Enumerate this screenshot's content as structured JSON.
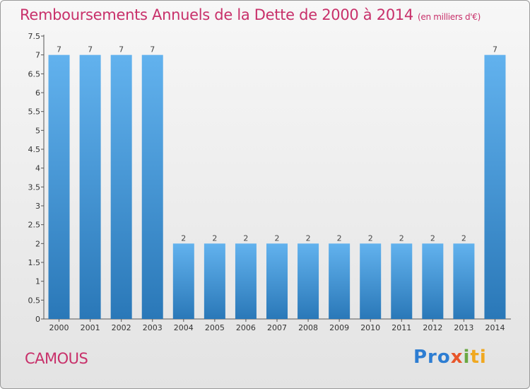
{
  "header": {
    "title": "Remboursements Annuels de la Dette de 2000 à 2014",
    "unit": "(en milliers d'€)"
  },
  "footer": {
    "commune": "CAMOUS",
    "logo": {
      "p1": "Pro",
      "p2": "x",
      "p3": "i",
      "p4": "ti"
    }
  },
  "colors": {
    "title": "#c8306a",
    "bar_light": "#62b2ee",
    "bar_dark": "#2a78b8"
  },
  "chart_data": {
    "type": "bar",
    "title": "Remboursements Annuels de la Dette de 2000 à 2014",
    "categories": [
      "2000",
      "2001",
      "2002",
      "2003",
      "2004",
      "2005",
      "2006",
      "2007",
      "2008",
      "2009",
      "2010",
      "2011",
      "2012",
      "2013",
      "2014"
    ],
    "values": [
      7,
      7,
      7,
      7,
      2,
      2,
      2,
      2,
      2,
      2,
      2,
      2,
      2,
      2,
      7
    ],
    "value_labels": [
      "7",
      "7",
      "7",
      "7",
      "2",
      "2",
      "2",
      "2",
      "2",
      "2",
      "2",
      "2",
      "2",
      "2",
      "7"
    ],
    "yticks": [
      "0",
      "0.5",
      "1",
      "1.5",
      "2",
      "2.5",
      "3",
      "3.5",
      "4",
      "4.5",
      "5",
      "5.5",
      "6",
      "6.5",
      "7",
      "7.5"
    ],
    "ylim": [
      0,
      7.5
    ],
    "grid": false
  }
}
